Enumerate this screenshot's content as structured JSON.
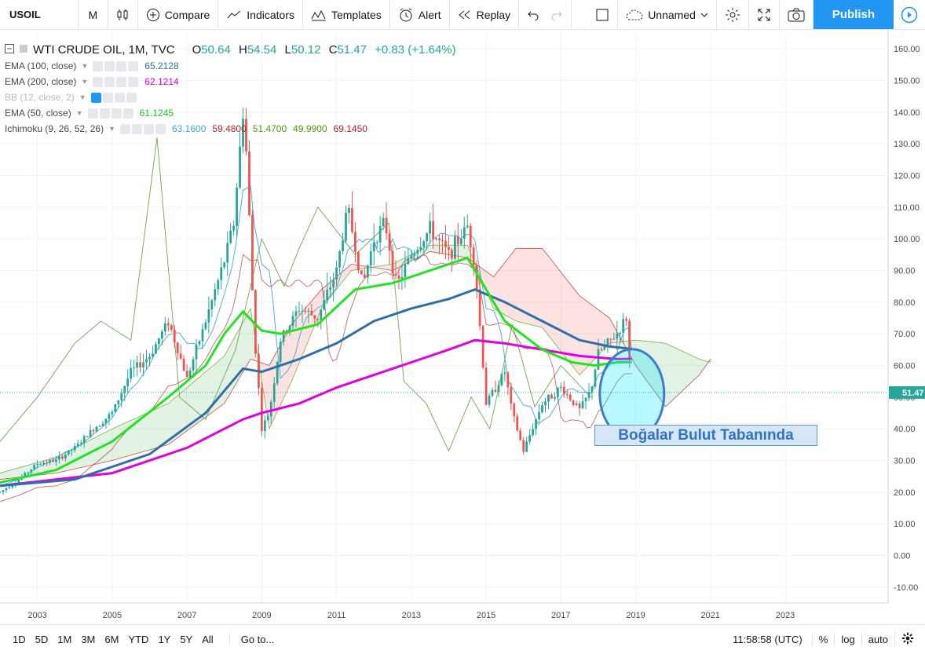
{
  "toolbar": {
    "symbol": "USOIL",
    "interval": "M",
    "compare": "Compare",
    "indicators": "Indicators",
    "templates": "Templates",
    "alert": "Alert",
    "replay": "Replay",
    "layout_name": "Unnamed",
    "publish": "Publish"
  },
  "legend": {
    "title": "WTI CRUDE OIL, 1M, TVC",
    "ohlc": {
      "o_label": "O",
      "o": "50.64",
      "h_label": "H",
      "h": "54.54",
      "l_label": "L",
      "l": "50.12",
      "c_label": "C",
      "c": "51.47",
      "change": "+0.83 (+1.64%)"
    },
    "indicators": [
      {
        "name": "EMA (100, close)",
        "values": [
          "65.2128"
        ],
        "colors": [
          "#2f6fa5"
        ]
      },
      {
        "name": "EMA (200, close)",
        "values": [
          "62.1214"
        ],
        "colors": [
          "#e000e0"
        ]
      },
      {
        "name": "BB (12, close, 2)",
        "values": [],
        "colors": [],
        "hidden": true
      },
      {
        "name": "EMA (50, close)",
        "values": [
          "61.1245"
        ],
        "colors": [
          "#22c322"
        ]
      },
      {
        "name": "Ichimoku (9, 26, 52, 26)",
        "values": [
          "63.1600",
          "59.4800",
          "51.4700",
          "49.9900",
          "69.1450"
        ],
        "colors": [
          "#3fa7d6",
          "#b02424",
          "#4e9a06",
          "#4e9a06",
          "#b02424"
        ]
      }
    ]
  },
  "annotation": "Boğalar Bulut Tabanında",
  "chart_data": {
    "type": "candlestick",
    "symbol": "WTI CRUDE OIL",
    "y_ticks": [
      "160.00",
      "150.00",
      "140.00",
      "130.00",
      "120.00",
      "110.00",
      "100.00",
      "90.00",
      "80.00",
      "70.00",
      "60.00",
      "50.00",
      "40.00",
      "30.00",
      "20.00",
      "10.00",
      "0.00",
      "-10.00"
    ],
    "ylim": [
      -15,
      165
    ],
    "x_ticks": [
      "2003",
      "2005",
      "2007",
      "2009",
      "2011",
      "2013",
      "2015",
      "2017",
      "2019",
      "2021",
      "2023"
    ],
    "xlim": [
      2002.0,
      2025.75
    ],
    "last_price_label": "51.47",
    "last_price": 51.47,
    "price_path": [
      [
        2002.0,
        20
      ],
      [
        2002.5,
        24
      ],
      [
        2003.0,
        29
      ],
      [
        2003.5,
        30
      ],
      [
        2004.0,
        34
      ],
      [
        2004.5,
        40
      ],
      [
        2005.0,
        45
      ],
      [
        2005.5,
        58
      ],
      [
        2006.0,
        63
      ],
      [
        2006.5,
        74
      ],
      [
        2007.0,
        56
      ],
      [
        2007.5,
        74
      ],
      [
        2008.0,
        93
      ],
      [
        2008.25,
        105
      ],
      [
        2008.5,
        140
      ],
      [
        2008.6,
        125
      ],
      [
        2008.8,
        70
      ],
      [
        2009.0,
        40
      ],
      [
        2009.2,
        45
      ],
      [
        2009.5,
        68
      ],
      [
        2010.0,
        78
      ],
      [
        2010.5,
        75
      ],
      [
        2011.0,
        90
      ],
      [
        2011.3,
        110
      ],
      [
        2011.7,
        85
      ],
      [
        2012.0,
        100
      ],
      [
        2012.3,
        105
      ],
      [
        2012.6,
        85
      ],
      [
        2013.0,
        95
      ],
      [
        2013.5,
        103
      ],
      [
        2013.8,
        98
      ],
      [
        2014.0,
        95
      ],
      [
        2014.5,
        104
      ],
      [
        2014.7,
        92
      ],
      [
        2015.0,
        48
      ],
      [
        2015.5,
        58
      ],
      [
        2015.7,
        45
      ],
      [
        2016.0,
        33
      ],
      [
        2016.5,
        48
      ],
      [
        2017.0,
        53
      ],
      [
        2017.5,
        46
      ],
      [
        2017.8,
        52
      ],
      [
        2018.0,
        64
      ],
      [
        2018.5,
        70
      ],
      [
        2018.75,
        75
      ],
      [
        2018.9,
        51.47
      ]
    ],
    "ema100_path": [
      [
        2002.0,
        22
      ],
      [
        2004.0,
        24
      ],
      [
        2006.0,
        32
      ],
      [
        2007.5,
        45
      ],
      [
        2008.5,
        59
      ],
      [
        2009.0,
        58
      ],
      [
        2010.0,
        62
      ],
      [
        2011.0,
        67
      ],
      [
        2012.0,
        74
      ],
      [
        2013.0,
        78
      ],
      [
        2014.0,
        81
      ],
      [
        2014.7,
        84
      ],
      [
        2015.5,
        80
      ],
      [
        2016.5,
        74
      ],
      [
        2017.5,
        68
      ],
      [
        2018.3,
        66
      ],
      [
        2018.9,
        65.2
      ]
    ],
    "ema200_path": [
      [
        2002.0,
        22
      ],
      [
        2005.0,
        26
      ],
      [
        2007.0,
        34
      ],
      [
        2008.5,
        43
      ],
      [
        2009.0,
        45
      ],
      [
        2010.0,
        48
      ],
      [
        2011.0,
        53
      ],
      [
        2012.0,
        57
      ],
      [
        2013.0,
        61
      ],
      [
        2014.0,
        65
      ],
      [
        2014.7,
        68
      ],
      [
        2015.5,
        67
      ],
      [
        2016.5,
        65
      ],
      [
        2017.5,
        63
      ],
      [
        2018.5,
        62
      ],
      [
        2018.9,
        62.1
      ]
    ],
    "ema50_path": [
      [
        2002.0,
        23
      ],
      [
        2003.5,
        27
      ],
      [
        2005.0,
        36
      ],
      [
        2006.5,
        50
      ],
      [
        2007.5,
        60
      ],
      [
        2008.0,
        70
      ],
      [
        2008.5,
        77
      ],
      [
        2009.0,
        71
      ],
      [
        2009.5,
        70
      ],
      [
        2010.5,
        73
      ],
      [
        2011.5,
        84
      ],
      [
        2012.5,
        86
      ],
      [
        2013.5,
        90
      ],
      [
        2014.5,
        94
      ],
      [
        2015.0,
        84
      ],
      [
        2015.5,
        74
      ],
      [
        2016.5,
        65
      ],
      [
        2017.3,
        61
      ],
      [
        2017.9,
        60
      ],
      [
        2018.5,
        61
      ],
      [
        2018.9,
        61.1
      ]
    ],
    "cloud_lead_a": [
      [
        2002.0,
        26
      ],
      [
        2003.5,
        31
      ],
      [
        2005.0,
        40
      ],
      [
        2006.5,
        48
      ],
      [
        2008.0,
        63
      ],
      [
        2008.7,
        78
      ],
      [
        2009.2,
        40
      ],
      [
        2009.8,
        55
      ],
      [
        2010.6,
        78
      ],
      [
        2011.4,
        90
      ],
      [
        2012.5,
        92
      ],
      [
        2013.5,
        98
      ],
      [
        2014.5,
        98
      ],
      [
        2015.2,
        78
      ],
      [
        2015.8,
        74
      ],
      [
        2016.5,
        72
      ],
      [
        2017.5,
        57
      ],
      [
        2018.3,
        67
      ],
      [
        2019.0,
        68
      ],
      [
        2019.8,
        67
      ],
      [
        2020.7,
        62
      ],
      [
        2021.0,
        61
      ]
    ],
    "cloud_lead_b": [
      [
        2002.0,
        24
      ],
      [
        2003.5,
        26
      ],
      [
        2005.0,
        30
      ],
      [
        2006.5,
        35
      ],
      [
        2008.0,
        48
      ],
      [
        2008.7,
        62
      ],
      [
        2009.2,
        60
      ],
      [
        2009.8,
        73
      ],
      [
        2010.6,
        84
      ],
      [
        2011.4,
        92
      ],
      [
        2012.5,
        90
      ],
      [
        2013.5,
        96
      ],
      [
        2014.5,
        94
      ],
      [
        2015.2,
        88
      ],
      [
        2015.8,
        97
      ],
      [
        2016.5,
        97
      ],
      [
        2017.5,
        82
      ],
      [
        2018.3,
        75
      ],
      [
        2019.0,
        60
      ],
      [
        2019.8,
        47
      ],
      [
        2020.7,
        57
      ],
      [
        2021.0,
        62
      ]
    ],
    "lagging_path": [
      [
        2002.0,
        36
      ],
      [
        2003.0,
        50
      ],
      [
        2004.0,
        67
      ],
      [
        2004.7,
        74
      ],
      [
        2005.5,
        68
      ],
      [
        2006.2,
        132
      ],
      [
        2006.8,
        50
      ],
      [
        2007.5,
        43
      ],
      [
        2008.3,
        65
      ],
      [
        2009.0,
        100
      ],
      [
        2009.6,
        85
      ],
      [
        2010.0,
        97
      ],
      [
        2010.5,
        110
      ],
      [
        2011.5,
        95
      ],
      [
        2012.4,
        105
      ],
      [
        2012.8,
        55
      ],
      [
        2013.4,
        48
      ],
      [
        2014.0,
        33
      ],
      [
        2014.6,
        50
      ],
      [
        2015.1,
        40
      ],
      [
        2015.7,
        73
      ],
      [
        2016.3,
        47
      ],
      [
        2017.0,
        60
      ],
      [
        2017.8,
        50
      ]
    ]
  },
  "bottom": {
    "ranges": [
      "1D",
      "5D",
      "1M",
      "3M",
      "6M",
      "YTD",
      "1Y",
      "5Y",
      "All"
    ],
    "goto": "Go to...",
    "clock": "11:58:58 (UTC)",
    "percent": "%",
    "log": "log",
    "auto": "auto"
  }
}
